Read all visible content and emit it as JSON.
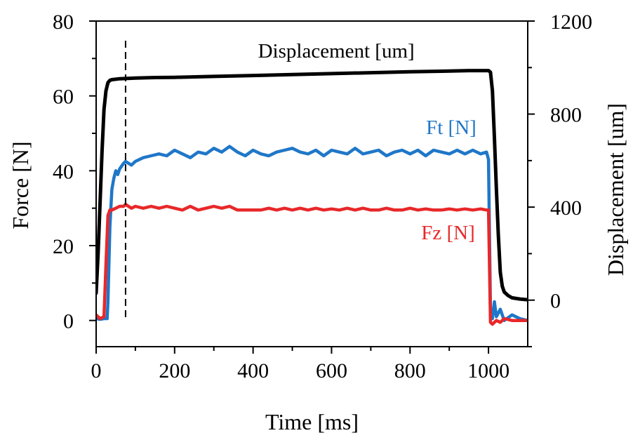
{
  "chart_data": {
    "type": "line",
    "title": "",
    "xlabel": "Time [ms]",
    "ylabel": "Force [N]",
    "y2label": "Displacement  [um]",
    "xlim": [
      0,
      1100
    ],
    "ylim": [
      -7,
      80
    ],
    "y2lim": [
      -200,
      1200
    ],
    "xticks": [
      0,
      200,
      400,
      600,
      800,
      1000
    ],
    "yticks": [
      0,
      20,
      40,
      60,
      80
    ],
    "y2ticks": [
      0,
      400,
      800,
      1200
    ],
    "grid": false,
    "vline_x": 75,
    "series": [
      {
        "name": "Displacement [um]",
        "axis": "right",
        "color": "#000000",
        "x": [
          0,
          5,
          10,
          15,
          20,
          25,
          30,
          35,
          40,
          50,
          60,
          75,
          100,
          150,
          200,
          300,
          400,
          500,
          600,
          700,
          800,
          900,
          950,
          1000,
          1005,
          1010,
          1015,
          1020,
          1025,
          1030,
          1035,
          1040,
          1050,
          1060,
          1080,
          1100
        ],
        "y": [
          30,
          200,
          420,
          640,
          820,
          900,
          935,
          945,
          948,
          950,
          952,
          953,
          955,
          957,
          958,
          962,
          966,
          970,
          974,
          978,
          982,
          985,
          987,
          987,
          980,
          900,
          700,
          480,
          280,
          120,
          60,
          35,
          20,
          10,
          5,
          2
        ]
      },
      {
        "name": "Ft [N]",
        "axis": "left",
        "color": "#1f77c8",
        "x": [
          0,
          10,
          20,
          28,
          30,
          35,
          40,
          45,
          50,
          55,
          60,
          70,
          75,
          90,
          100,
          120,
          140,
          160,
          180,
          200,
          220,
          240,
          260,
          280,
          300,
          320,
          340,
          360,
          380,
          400,
          420,
          440,
          460,
          480,
          500,
          520,
          540,
          560,
          580,
          600,
          620,
          640,
          660,
          680,
          700,
          720,
          740,
          760,
          780,
          800,
          820,
          840,
          860,
          880,
          900,
          920,
          940,
          960,
          980,
          995,
          1000,
          1005,
          1010,
          1015,
          1020,
          1030,
          1040,
          1060,
          1080,
          1100
        ],
        "y": [
          0.5,
          0.3,
          0.5,
          0.5,
          5,
          25,
          35,
          38,
          40,
          39,
          40.5,
          42,
          42.5,
          41.5,
          42.5,
          43.5,
          44,
          44.5,
          44,
          45.5,
          44.5,
          43.5,
          45,
          44.5,
          46,
          45,
          46.5,
          45,
          44,
          45.5,
          44.5,
          44,
          45,
          45.5,
          46,
          45,
          44.5,
          45.5,
          44,
          45.5,
          45,
          44.5,
          46,
          44.5,
          45,
          45.5,
          44,
          45,
          45.5,
          44.5,
          45.5,
          44,
          45.5,
          45,
          44.5,
          45.5,
          44.5,
          45.5,
          44.5,
          45,
          43,
          3,
          0.5,
          5,
          1,
          3,
          0,
          1.5,
          0.5,
          0
        ]
      },
      {
        "name": "Fz [N]",
        "axis": "left",
        "color": "#e8282a",
        "x": [
          0,
          10,
          20,
          25,
          30,
          35,
          40,
          50,
          60,
          70,
          75,
          90,
          100,
          120,
          140,
          160,
          180,
          200,
          220,
          240,
          260,
          280,
          300,
          320,
          340,
          360,
          380,
          400,
          420,
          440,
          460,
          480,
          500,
          520,
          540,
          560,
          580,
          600,
          620,
          640,
          660,
          680,
          700,
          720,
          740,
          760,
          780,
          800,
          820,
          840,
          860,
          880,
          900,
          920,
          940,
          960,
          980,
          995,
          1000,
          1005,
          1010,
          1020,
          1030,
          1040,
          1060,
          1080,
          1100
        ],
        "y": [
          1.5,
          0.5,
          1,
          15,
          28,
          29.5,
          29.5,
          30,
          30.5,
          30.5,
          31,
          30,
          30.5,
          30,
          30.5,
          30,
          30.5,
          30,
          29.5,
          30.5,
          29.5,
          30,
          30.5,
          30,
          30.5,
          29.5,
          29.5,
          29.5,
          29.5,
          30,
          29.5,
          30,
          29.5,
          30,
          29.5,
          30,
          29.5,
          29.8,
          29.5,
          30,
          29.5,
          30,
          29.5,
          29.5,
          30,
          29.5,
          29.5,
          30,
          29.5,
          29.8,
          29.5,
          29.5,
          29.8,
          29.5,
          29.8,
          29.5,
          29.8,
          29.5,
          29.5,
          -0.5,
          -1,
          0,
          -0.5,
          0.5,
          0,
          0,
          0
        ]
      }
    ]
  }
}
